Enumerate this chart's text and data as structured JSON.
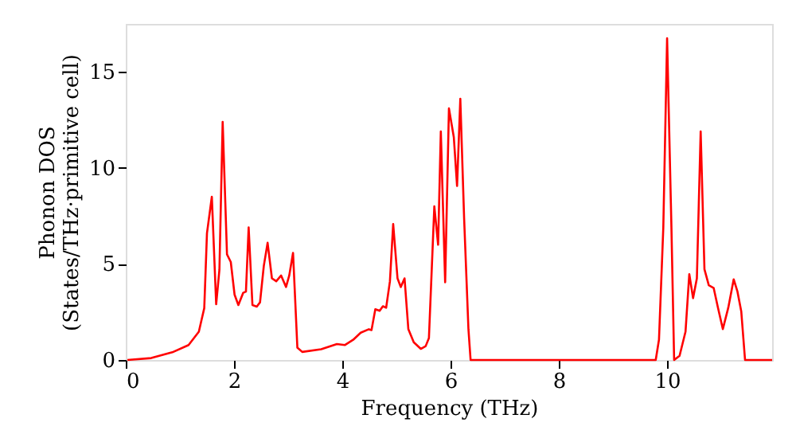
{
  "chart_data": {
    "type": "line",
    "xlabel": "Frequency (THz)",
    "ylabel": "Phonon DOS\n(States/THz·primitive cell)",
    "xlim": [
      0,
      11.94
    ],
    "xticks": [
      0,
      2,
      4,
      6,
      8,
      10
    ],
    "ylim": [
      0,
      17.5
    ],
    "yticks": [
      0,
      5,
      10,
      15
    ],
    "grid": false,
    "line_style": "solid",
    "series": [
      {
        "color": "#ff0000",
        "x": [
          0.03,
          0.47,
          0.86,
          1.16,
          1.35,
          1.45,
          1.5,
          1.59,
          1.67,
          1.73,
          1.79,
          1.87,
          1.94,
          2.01,
          2.08,
          2.17,
          2.22,
          2.27,
          2.34,
          2.42,
          2.48,
          2.55,
          2.62,
          2.7,
          2.78,
          2.87,
          2.96,
          3.02,
          3.09,
          3.17,
          3.26,
          3.61,
          3.9,
          4.05,
          4.2,
          4.34,
          4.49,
          4.54,
          4.61,
          4.69,
          4.75,
          4.81,
          4.88,
          4.94,
          5.02,
          5.08,
          5.15,
          5.22,
          5.32,
          5.45,
          5.54,
          5.6,
          5.7,
          5.77,
          5.82,
          5.9,
          5.97,
          6.06,
          6.12,
          6.18,
          6.25,
          6.33,
          6.37,
          9.79,
          9.85,
          9.93,
          10.0,
          10.08,
          10.13,
          10.23,
          10.34,
          10.41,
          10.48,
          10.55,
          10.62,
          10.69,
          10.77,
          10.86,
          10.94,
          11.03,
          11.13,
          11.23,
          11.3,
          11.37,
          11.44,
          11.94
        ],
        "values": [
          0,
          0.1,
          0.4,
          0.78,
          1.47,
          2.7,
          6.6,
          8.5,
          2.9,
          4.7,
          12.4,
          5.5,
          5.1,
          3.4,
          2.86,
          3.5,
          3.56,
          6.9,
          2.86,
          2.78,
          3.0,
          4.9,
          6.1,
          4.25,
          4.1,
          4.4,
          3.8,
          4.4,
          5.58,
          0.64,
          0.42,
          0.56,
          0.83,
          0.78,
          1.05,
          1.42,
          1.6,
          1.56,
          2.64,
          2.56,
          2.8,
          2.72,
          4.1,
          7.08,
          4.25,
          3.8,
          4.25,
          1.61,
          0.92,
          0.58,
          0.72,
          1.14,
          8.0,
          6.0,
          11.9,
          4.05,
          13.1,
          11.6,
          9.06,
          13.6,
          7.4,
          1.61,
          0,
          0,
          1.06,
          6.9,
          16.75,
          6.9,
          0,
          0.22,
          1.47,
          4.47,
          3.22,
          4.25,
          11.9,
          4.72,
          3.89,
          3.75,
          2.72,
          1.61,
          2.72,
          4.2,
          3.56,
          2.53,
          0,
          0
        ]
      }
    ]
  }
}
